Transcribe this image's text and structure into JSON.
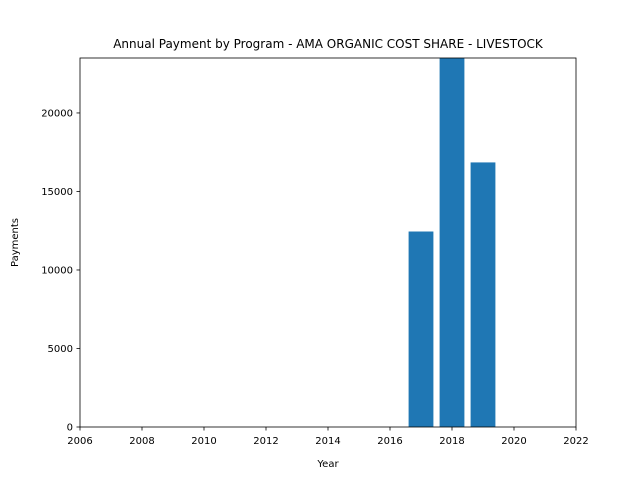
{
  "chart_data": {
    "type": "bar",
    "title": "Annual Payment by Program - AMA ORGANIC COST SHARE - LIVESTOCK",
    "xlabel": "Year",
    "ylabel": "Payments",
    "x": [
      2017,
      2018,
      2019
    ],
    "values": [
      12450,
      23500,
      16850
    ],
    "bar_width": 0.8,
    "xlim": [
      2006,
      2022
    ],
    "ylim": [
      0,
      23500
    ],
    "xticks": [
      2006,
      2008,
      2010,
      2012,
      2014,
      2016,
      2018,
      2020,
      2022
    ],
    "yticks": [
      0,
      5000,
      10000,
      15000,
      20000
    ],
    "grid": false,
    "legend": "none",
    "colors": {
      "bar": "#1f77b4"
    }
  }
}
